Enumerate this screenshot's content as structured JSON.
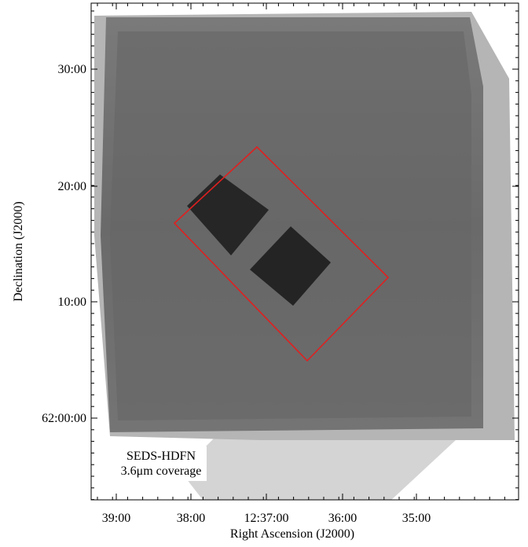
{
  "figure": {
    "x_axis": {
      "label": "Right Ascension (J2000)",
      "ticks": [
        "39:00",
        "38:00",
        "12:37:00",
        "36:00",
        "35:00"
      ]
    },
    "y_axis": {
      "label": "Declination (J2000)",
      "ticks": [
        "30:00",
        "20:00",
        "10:00",
        "62:00:00"
      ]
    },
    "annotation": {
      "lines": [
        "SEDS-HDFN",
        "3.6μm coverage"
      ]
    }
  }
}
